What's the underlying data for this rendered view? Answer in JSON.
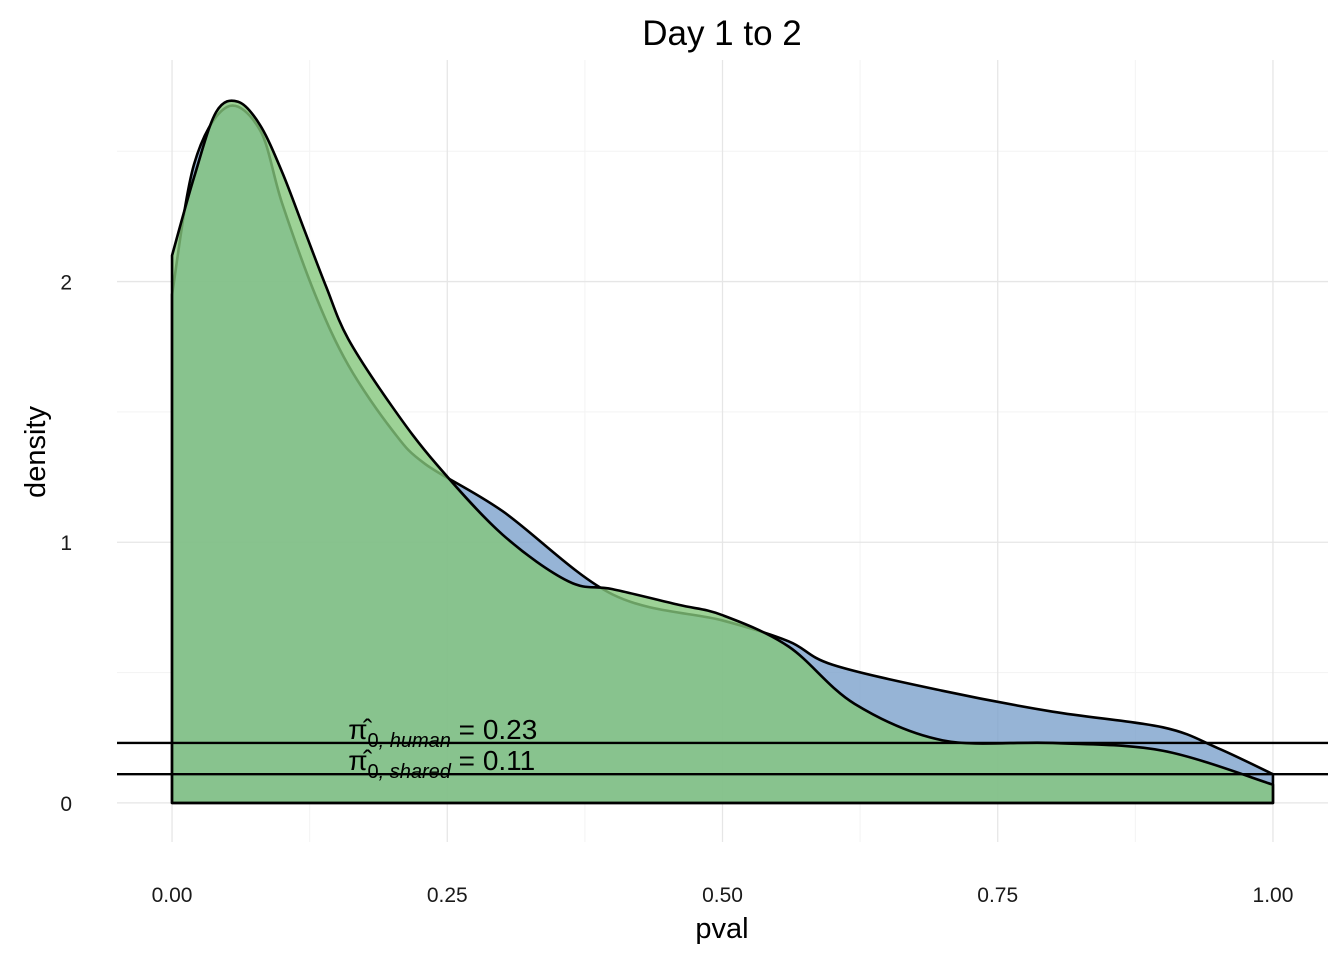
{
  "chart_data": {
    "type": "area",
    "title": "Day 1 to 2",
    "xlabel": "pval",
    "ylabel": "density",
    "xlim": [
      -0.05,
      1.05
    ],
    "ylim": [
      -0.15,
      2.85
    ],
    "x_ticks": [
      0.0,
      0.25,
      0.5,
      0.75,
      1.0
    ],
    "x_tick_labels": [
      "0.00",
      "0.25",
      "0.50",
      "0.75",
      "1.00"
    ],
    "y_ticks": [
      0,
      1,
      2
    ],
    "y_tick_labels": [
      "0",
      "1",
      "2"
    ],
    "grid": true,
    "legend": "none",
    "series": [
      {
        "color": "#7ca1cc",
        "fill_opacity": 0.8,
        "x": [
          0.0,
          0.02,
          0.05,
          0.08,
          0.1,
          0.13,
          0.16,
          0.2,
          0.23,
          0.3,
          0.4,
          0.5,
          0.56,
          0.6,
          0.7,
          0.8,
          0.9,
          0.95,
          1.0
        ],
        "y": [
          1.95,
          2.45,
          2.67,
          2.58,
          2.3,
          1.95,
          1.68,
          1.43,
          1.3,
          1.12,
          0.8,
          0.7,
          0.62,
          0.53,
          0.43,
          0.35,
          0.29,
          0.21,
          0.11
        ]
      },
      {
        "color": "#84c77c",
        "fill_opacity": 0.8,
        "x": [
          0.0,
          0.02,
          0.04,
          0.06,
          0.08,
          0.1,
          0.12,
          0.14,
          0.16,
          0.2,
          0.24,
          0.3,
          0.36,
          0.4,
          0.46,
          0.5,
          0.56,
          0.62,
          0.7,
          0.8,
          0.9,
          1.0
        ],
        "y": [
          2.1,
          2.4,
          2.65,
          2.69,
          2.6,
          2.42,
          2.2,
          1.98,
          1.78,
          1.52,
          1.3,
          1.03,
          0.85,
          0.82,
          0.76,
          0.72,
          0.6,
          0.38,
          0.24,
          0.23,
          0.2,
          0.07
        ]
      }
    ],
    "hlines": [
      0.23,
      0.11
    ],
    "annotations": [
      {
        "symbol": "π̂",
        "subscript_zero": "0",
        "subscript": ", human",
        "value_text": " = 0.23",
        "x": 0.16,
        "y": 0.23
      },
      {
        "symbol": "π̂",
        "subscript_zero": "0",
        "subscript": ", shared",
        "value_text": " = 0.11",
        "x": 0.16,
        "y": 0.11
      }
    ]
  }
}
